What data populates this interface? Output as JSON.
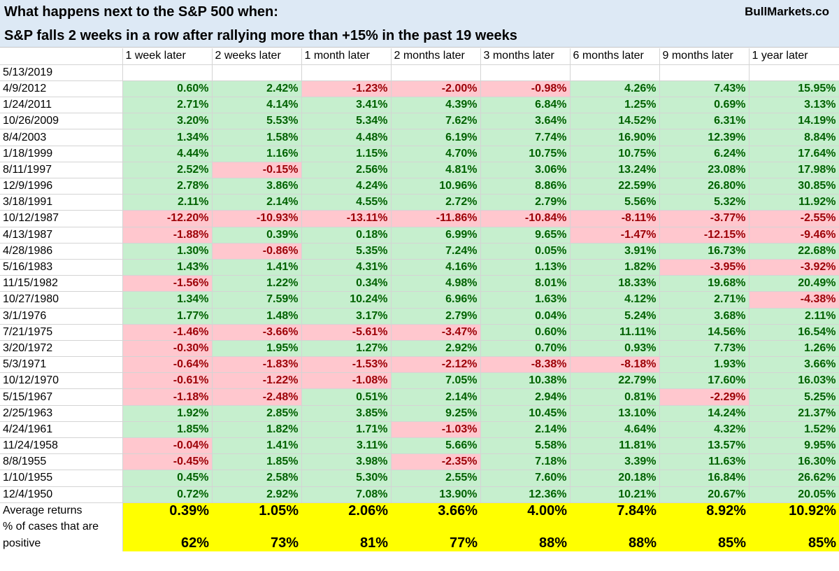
{
  "title_line1": "What happens next to the S&P 500 when:",
  "title_line2": "S&P falls 2 weeks in a row after rallying more than +15% in the past 19 weeks",
  "brand": "BullMarkets.co",
  "colors": {
    "header_bg": "#dde9f5",
    "positive_bg": "#c6efce",
    "positive_text": "#006100",
    "negative_bg": "#ffc7ce",
    "negative_text": "#9c0006",
    "summary_bg": "#ffff00"
  },
  "columns": [
    "1 week later",
    "2 weeks later",
    "1 month later",
    "2 months later",
    "3 months later",
    "6 months later",
    "9 months later",
    "1 year later"
  ],
  "rows": [
    {
      "date": "5/13/2019",
      "values": [
        "",
        "",
        "",
        "",
        "",
        "",
        "",
        ""
      ]
    },
    {
      "date": "4/9/2012",
      "values": [
        "0.60%",
        "2.42%",
        "-1.23%",
        "-2.00%",
        "-0.98%",
        "4.26%",
        "7.43%",
        "15.95%"
      ]
    },
    {
      "date": "1/24/2011",
      "values": [
        "2.71%",
        "4.14%",
        "3.41%",
        "4.39%",
        "6.84%",
        "1.25%",
        "0.69%",
        "3.13%"
      ]
    },
    {
      "date": "10/26/2009",
      "values": [
        "3.20%",
        "5.53%",
        "5.34%",
        "7.62%",
        "3.64%",
        "14.52%",
        "6.31%",
        "14.19%"
      ]
    },
    {
      "date": "8/4/2003",
      "values": [
        "1.34%",
        "1.58%",
        "4.48%",
        "6.19%",
        "7.74%",
        "16.90%",
        "12.39%",
        "8.84%"
      ]
    },
    {
      "date": "1/18/1999",
      "values": [
        "4.44%",
        "1.16%",
        "1.15%",
        "4.70%",
        "10.75%",
        "10.75%",
        "6.24%",
        "17.64%"
      ]
    },
    {
      "date": "8/11/1997",
      "values": [
        "2.52%",
        "-0.15%",
        "2.56%",
        "4.81%",
        "3.06%",
        "13.24%",
        "23.08%",
        "17.98%"
      ]
    },
    {
      "date": "12/9/1996",
      "values": [
        "2.78%",
        "3.86%",
        "4.24%",
        "10.96%",
        "8.86%",
        "22.59%",
        "26.80%",
        "30.85%"
      ]
    },
    {
      "date": "3/18/1991",
      "values": [
        "2.11%",
        "2.14%",
        "4.55%",
        "2.72%",
        "2.79%",
        "5.56%",
        "5.32%",
        "11.92%"
      ]
    },
    {
      "date": "10/12/1987",
      "values": [
        "-12.20%",
        "-10.93%",
        "-13.11%",
        "-11.86%",
        "-10.84%",
        "-8.11%",
        "-3.77%",
        "-2.55%"
      ]
    },
    {
      "date": "4/13/1987",
      "values": [
        "-1.88%",
        "0.39%",
        "0.18%",
        "6.99%",
        "9.65%",
        "-1.47%",
        "-12.15%",
        "-9.46%"
      ]
    },
    {
      "date": "4/28/1986",
      "values": [
        "1.30%",
        "-0.86%",
        "5.35%",
        "7.24%",
        "0.05%",
        "3.91%",
        "16.73%",
        "22.68%"
      ]
    },
    {
      "date": "5/16/1983",
      "values": [
        "1.43%",
        "1.41%",
        "4.31%",
        "4.16%",
        "1.13%",
        "1.82%",
        "-3.95%",
        "-3.92%"
      ]
    },
    {
      "date": "11/15/1982",
      "values": [
        "-1.56%",
        "1.22%",
        "0.34%",
        "4.98%",
        "8.01%",
        "18.33%",
        "19.68%",
        "20.49%"
      ]
    },
    {
      "date": "10/27/1980",
      "values": [
        "1.34%",
        "7.59%",
        "10.24%",
        "6.96%",
        "1.63%",
        "4.12%",
        "2.71%",
        "-4.38%"
      ]
    },
    {
      "date": "3/1/1976",
      "values": [
        "1.77%",
        "1.48%",
        "3.17%",
        "2.79%",
        "0.04%",
        "5.24%",
        "3.68%",
        "2.11%"
      ]
    },
    {
      "date": "7/21/1975",
      "values": [
        "-1.46%",
        "-3.66%",
        "-5.61%",
        "-3.47%",
        "0.60%",
        "11.11%",
        "14.56%",
        "16.54%"
      ]
    },
    {
      "date": "3/20/1972",
      "values": [
        "-0.30%",
        "1.95%",
        "1.27%",
        "2.92%",
        "0.70%",
        "0.93%",
        "7.73%",
        "1.26%"
      ]
    },
    {
      "date": "5/3/1971",
      "values": [
        "-0.64%",
        "-1.83%",
        "-1.53%",
        "-2.12%",
        "-8.38%",
        "-8.18%",
        "1.93%",
        "3.66%"
      ]
    },
    {
      "date": "10/12/1970",
      "values": [
        "-0.61%",
        "-1.22%",
        "-1.08%",
        "7.05%",
        "10.38%",
        "22.79%",
        "17.60%",
        "16.03%"
      ]
    },
    {
      "date": "5/15/1967",
      "values": [
        "-1.18%",
        "-2.48%",
        "0.51%",
        "2.14%",
        "2.94%",
        "0.81%",
        "-2.29%",
        "5.25%"
      ]
    },
    {
      "date": "2/25/1963",
      "values": [
        "1.92%",
        "2.85%",
        "3.85%",
        "9.25%",
        "10.45%",
        "13.10%",
        "14.24%",
        "21.37%"
      ]
    },
    {
      "date": "4/24/1961",
      "values": [
        "1.85%",
        "1.82%",
        "1.71%",
        "-1.03%",
        "2.14%",
        "4.64%",
        "4.32%",
        "1.52%"
      ]
    },
    {
      "date": "11/24/1958",
      "values": [
        "-0.04%",
        "1.41%",
        "3.11%",
        "5.66%",
        "5.58%",
        "11.81%",
        "13.57%",
        "9.95%"
      ]
    },
    {
      "date": "8/8/1955",
      "values": [
        "-0.45%",
        "1.85%",
        "3.98%",
        "-2.35%",
        "7.18%",
        "3.39%",
        "11.63%",
        "16.30%"
      ]
    },
    {
      "date": "1/10/1955",
      "values": [
        "0.45%",
        "2.58%",
        "5.30%",
        "2.55%",
        "7.60%",
        "20.18%",
        "16.84%",
        "26.62%"
      ]
    },
    {
      "date": "12/4/1950",
      "values": [
        "0.72%",
        "2.92%",
        "7.08%",
        "13.90%",
        "12.36%",
        "10.21%",
        "20.67%",
        "20.05%"
      ]
    }
  ],
  "summary": {
    "avg_label": "Average returns",
    "avg_values": [
      "0.39%",
      "1.05%",
      "2.06%",
      "3.66%",
      "4.00%",
      "7.84%",
      "8.92%",
      "10.92%"
    ],
    "pct_label_line1": "% of cases that are",
    "pct_label_line2": "positive",
    "pct_values": [
      "62%",
      "73%",
      "81%",
      "77%",
      "88%",
      "88%",
      "85%",
      "85%"
    ]
  }
}
